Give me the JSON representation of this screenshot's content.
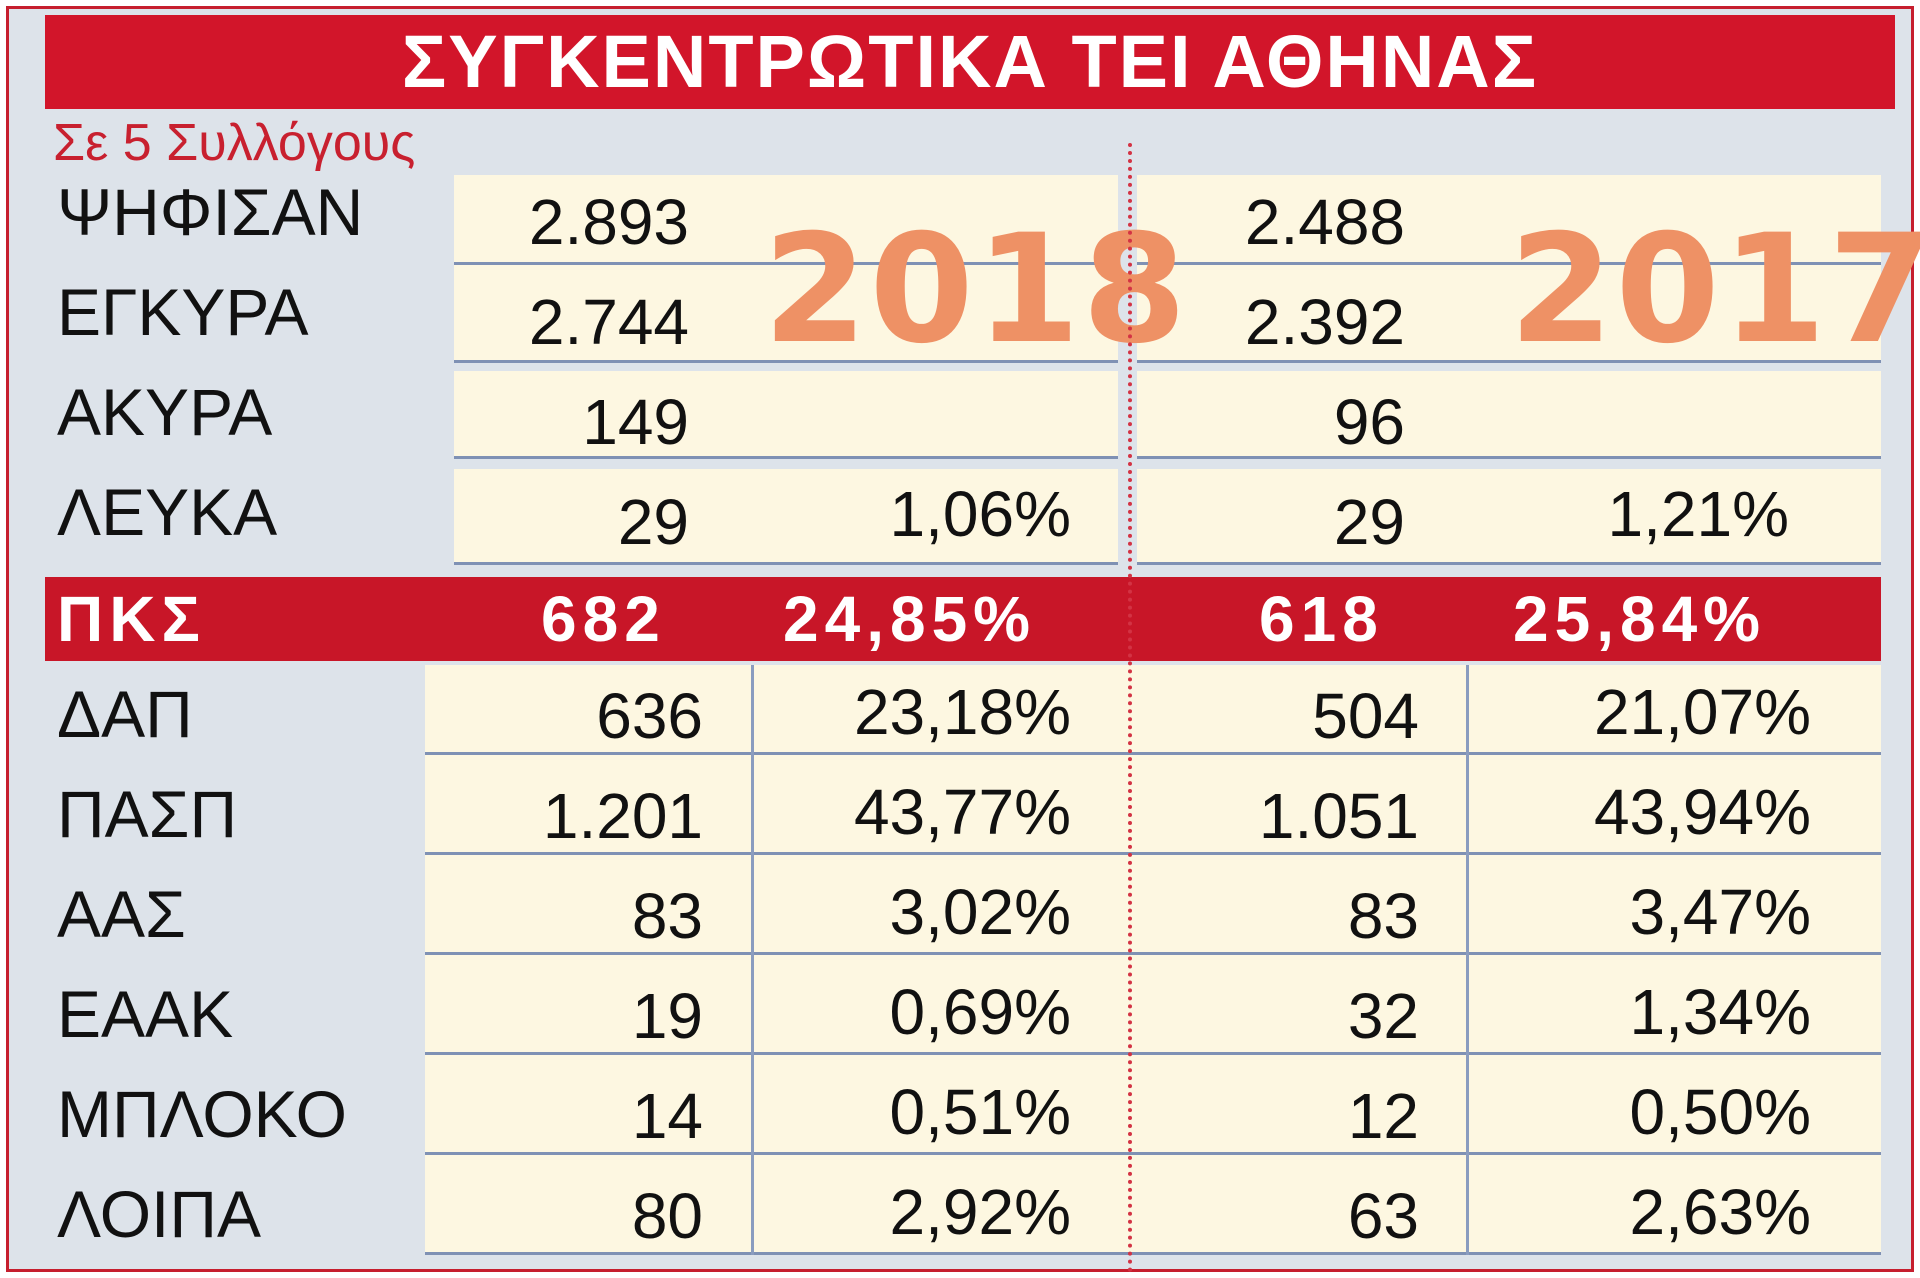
{
  "title": "ΣΥΓΚΕΝΤΡΩΤΙΚΑ ΤΕΙ ΑΘΗΝΑΣ",
  "subtitle": "Σε 5 Συλλόγους",
  "years": {
    "left": "2018",
    "right": "2017"
  },
  "top_rows": [
    {
      "label": "ΨΗΦΙΣΑΝ",
      "v2018": "2.893",
      "p2018": "",
      "v2017": "2.488",
      "p2017": ""
    },
    {
      "label": "ΕΓΚΥΡΑ",
      "v2018": "2.744",
      "p2018": "",
      "v2017": "2.392",
      "p2017": ""
    },
    {
      "label": "ΑΚΥΡΑ",
      "v2018": "149",
      "p2018": "",
      "v2017": "96",
      "p2017": ""
    },
    {
      "label": "ΛΕΥΚΑ",
      "v2018": "29",
      "p2018": "1,06%",
      "v2017": "29",
      "p2017": "1,21%"
    }
  ],
  "pks": {
    "label": "ΠΚΣ",
    "v2018": "682",
    "p2018": "24,85%",
    "v2017": "618",
    "p2017": "25,84%"
  },
  "bottom_rows": [
    {
      "label": "ΔΑΠ",
      "v2018": "636",
      "p2018": "23,18%",
      "v2017": "504",
      "p2017": "21,07%"
    },
    {
      "label": "ΠΑΣΠ",
      "v2018": "1.201",
      "p2018": "43,77%",
      "v2017": "1.051",
      "p2017": "43,94%"
    },
    {
      "label": "ΑΑΣ",
      "v2018": "83",
      "p2018": "3,02%",
      "v2017": "83",
      "p2017": "3,47%"
    },
    {
      "label": "ΕΑΑΚ",
      "v2018": "19",
      "p2018": "0,69%",
      "v2017": "32",
      "p2017": "1,34%"
    },
    {
      "label": "ΜΠΛΟΚΟ",
      "v2018": "14",
      "p2018": "0,51%",
      "v2017": "12",
      "p2017": "0,50%"
    },
    {
      "label": "ΛΟΙΠΑ",
      "v2018": "80",
      "p2018": "2,92%",
      "v2017": "63",
      "p2017": "2,63%"
    }
  ],
  "colors": {
    "title_bg": "#d2152a",
    "year": "#ee9165",
    "band": "#fdf7e1",
    "frame": "#dde3ea"
  }
}
